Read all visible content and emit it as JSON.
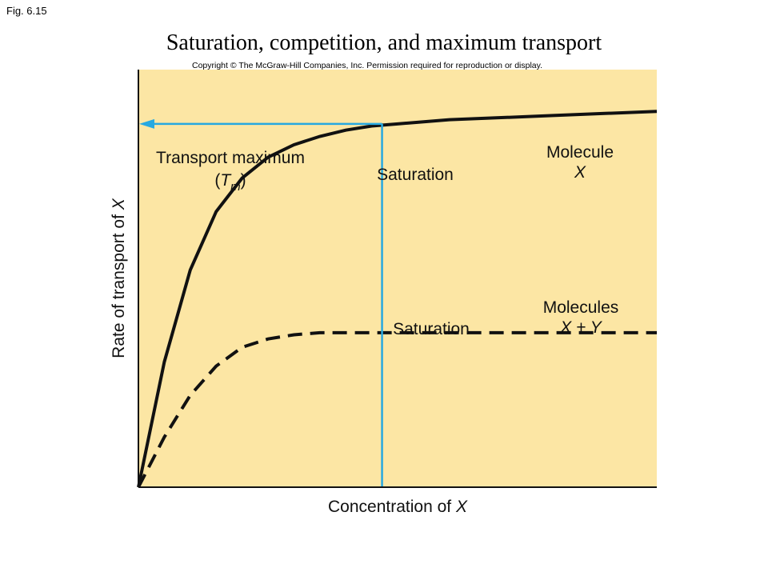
{
  "header": {
    "figure_label": "Fig. 6.15",
    "title": "Saturation, competition, and maximum transport",
    "copyright": "Copyright © The McGraw-Hill Companies, Inc. Permission required for reproduction or display."
  },
  "chart_data": {
    "type": "line",
    "title": "Saturation, competition, and maximum transport",
    "xlabel_text": "Concentration of ",
    "xlabel_var": "X",
    "ylabel_text": "Rate of transport of ",
    "ylabel_var": "X",
    "xlim": [
      0,
      100
    ],
    "ylim": [
      0,
      100
    ],
    "grid": false,
    "series": [
      {
        "name_line1": "Molecule",
        "name_line2": "X",
        "style": "solid",
        "color": "#111111",
        "x": [
          0,
          5,
          10,
          15,
          20,
          25,
          30,
          35,
          40,
          45,
          50,
          60,
          70,
          80,
          90,
          100
        ],
        "y": [
          0,
          30,
          52,
          66,
          74,
          79,
          82,
          84,
          85.5,
          86.5,
          87,
          88,
          88.5,
          89,
          89.5,
          90
        ]
      },
      {
        "name_line1": "Molecules",
        "name_line2": "X + Y",
        "style": "dashed",
        "color": "#111111",
        "x": [
          0,
          5,
          10,
          15,
          20,
          25,
          30,
          35,
          40,
          50,
          60,
          70,
          80,
          90,
          100
        ],
        "y": [
          0,
          12,
          22,
          29,
          33.5,
          35.5,
          36.5,
          37,
          37,
          37,
          37,
          37,
          37,
          37,
          37
        ]
      }
    ],
    "annotations": {
      "tm_line1": "Transport maximum",
      "tm_var": "T",
      "tm_sub": "m",
      "saturation_upper": "Saturation",
      "saturation_lower": "Saturation",
      "saturation_x": 47,
      "tm_y": 87
    },
    "colors": {
      "plot_bg": "#fce6a4",
      "axis": "#111111",
      "annotation": "#27a9e1"
    }
  }
}
